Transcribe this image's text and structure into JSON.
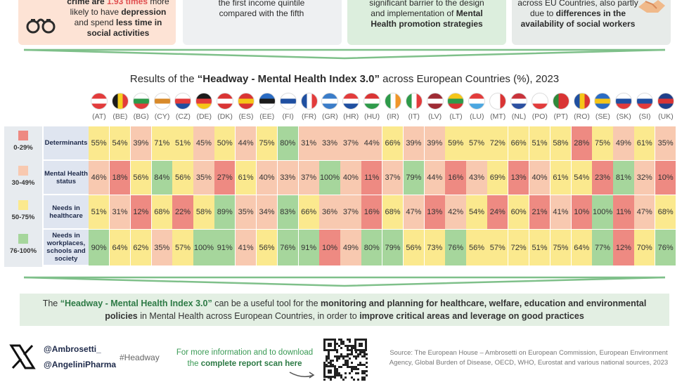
{
  "top_cards": {
    "card1": {
      "pre": "crime are ",
      "highlight": "1.93 times",
      "post1": " more likely to have ",
      "depression": "depression",
      "post2": " and spend ",
      "less_time": "less time",
      "post3": " in social activities",
      "icon": "handcuffs-icon"
    },
    "card2": {
      "line1": "the first income quintile",
      "line2": "compared with the fifth"
    },
    "card3": {
      "line1": "significant barrier to the design",
      "line2": "and implementation of ",
      "mental": "Mental",
      "line3": "Health promotion strategies"
    },
    "card4": {
      "line1": "across EU Countries, also partly",
      "line2": "due to ",
      "bold": "differences in the",
      "line3": "availability of social workers",
      "icon": "handshake-icon"
    }
  },
  "title": {
    "pre": "Results of the ",
    "bold": "“Headway - Mental Health Index 3.0”",
    "post": " across European Countries (%), 2023"
  },
  "countries": [
    {
      "code": "(AT)",
      "colors": [
        "#e23b3b",
        "#ffffff",
        "#e23b3b"
      ],
      "dir": "h"
    },
    {
      "code": "(BE)",
      "colors": [
        "#1b1b1b",
        "#f5d020",
        "#e23b3b"
      ],
      "dir": "v"
    },
    {
      "code": "(BG)",
      "colors": [
        "#ffffff",
        "#2e9a4a",
        "#e23b3b"
      ],
      "dir": "h"
    },
    {
      "code": "(CY)",
      "colors": [
        "#ffffff",
        "#d88a2a",
        "#ffffff"
      ],
      "dir": "h"
    },
    {
      "code": "(CZ)",
      "colors": [
        "#ffffff",
        "#e23b3b",
        "#1f4fa0"
      ],
      "dir": "h"
    },
    {
      "code": "(DE)",
      "colors": [
        "#1b1b1b",
        "#e23b3b",
        "#f5c518"
      ],
      "dir": "h"
    },
    {
      "code": "(DK)",
      "colors": [
        "#d93434",
        "#ffffff",
        "#d93434"
      ],
      "dir": "h"
    },
    {
      "code": "(ES)",
      "colors": [
        "#d93434",
        "#f5c518",
        "#d93434"
      ],
      "dir": "h"
    },
    {
      "code": "(EE)",
      "colors": [
        "#2a6cc4",
        "#1b1b1b",
        "#ffffff"
      ],
      "dir": "h"
    },
    {
      "code": "(FI)",
      "colors": [
        "#ffffff",
        "#1f4fa0",
        "#ffffff"
      ],
      "dir": "h"
    },
    {
      "code": "(FR)",
      "colors": [
        "#1f4fa0",
        "#ffffff",
        "#e23b3b"
      ],
      "dir": "v"
    },
    {
      "code": "(GR)",
      "colors": [
        "#3a7cc8",
        "#ffffff",
        "#3a7cc8"
      ],
      "dir": "h"
    },
    {
      "code": "(HR)",
      "colors": [
        "#e23b3b",
        "#ffffff",
        "#1f4fa0"
      ],
      "dir": "h"
    },
    {
      "code": "(HU)",
      "colors": [
        "#d93434",
        "#ffffff",
        "#2e9a4a"
      ],
      "dir": "h"
    },
    {
      "code": "(IR)",
      "colors": [
        "#2e9a4a",
        "#ffffff",
        "#f0962a"
      ],
      "dir": "v"
    },
    {
      "code": "(IT)",
      "colors": [
        "#2e9a4a",
        "#ffffff",
        "#e23b3b"
      ],
      "dir": "v"
    },
    {
      "code": "(LV)",
      "colors": [
        "#9e2b34",
        "#ffffff",
        "#9e2b34"
      ],
      "dir": "h"
    },
    {
      "code": "(LT)",
      "colors": [
        "#f5c518",
        "#2e9a4a",
        "#d93434"
      ],
      "dir": "h"
    },
    {
      "code": "(LU)",
      "colors": [
        "#e23b3b",
        "#ffffff",
        "#4aa6e0"
      ],
      "dir": "h"
    },
    {
      "code": "(MT)",
      "colors": [
        "#ffffff",
        "#ffffff",
        "#d93434"
      ],
      "dir": "v"
    },
    {
      "code": "(NL)",
      "colors": [
        "#c8323a",
        "#ffffff",
        "#2a4fa0"
      ],
      "dir": "h"
    },
    {
      "code": "(PO)",
      "colors": [
        "#ffffff",
        "#ffffff",
        "#e23b3b"
      ],
      "dir": "h"
    },
    {
      "code": "(PT)",
      "colors": [
        "#2e8a3a",
        "#d93434",
        "#d93434"
      ],
      "dir": "v"
    },
    {
      "code": "(RO)",
      "colors": [
        "#1f4fa0",
        "#f5c518",
        "#d93434"
      ],
      "dir": "v"
    },
    {
      "code": "(SE)",
      "colors": [
        "#2a6cc4",
        "#f5c518",
        "#2a6cc4"
      ],
      "dir": "h"
    },
    {
      "code": "(SK)",
      "colors": [
        "#ffffff",
        "#1f4fa0",
        "#e23b3b"
      ],
      "dir": "h"
    },
    {
      "code": "(SI)",
      "colors": [
        "#ffffff",
        "#1f4fa0",
        "#e23b3b"
      ],
      "dir": "h"
    },
    {
      "code": "(UK)",
      "colors": [
        "#1f3f8a",
        "#d93434",
        "#1f3f8a"
      ],
      "dir": "h"
    }
  ],
  "legend": [
    {
      "label": "0-29%",
      "color": "#ee8a82"
    },
    {
      "label": "30-49%",
      "color": "#f8c9b0"
    },
    {
      "label": "50-75%",
      "color": "#fbe98e"
    },
    {
      "label": "76-100%",
      "color": "#a6d69c"
    }
  ],
  "rows": [
    {
      "label": "Determinants",
      "values": [
        55,
        54,
        39,
        71,
        51,
        45,
        50,
        44,
        75,
        80,
        31,
        33,
        37,
        44,
        66,
        39,
        39,
        59,
        57,
        72,
        66,
        51,
        58,
        28,
        75,
        49,
        61,
        35
      ]
    },
    {
      "label": "Mental Health status",
      "values": [
        46,
        18,
        56,
        84,
        56,
        35,
        27,
        61,
        40,
        33,
        37,
        100,
        40,
        11,
        37,
        79,
        44,
        16,
        43,
        69,
        13,
        40,
        61,
        54,
        23,
        81,
        32,
        10
      ]
    },
    {
      "label": "Needs in healthcare",
      "values": [
        51,
        31,
        12,
        68,
        22,
        58,
        89,
        35,
        34,
        83,
        66,
        36,
        37,
        16,
        68,
        47,
        13,
        42,
        54,
        24,
        60,
        21,
        41,
        10,
        100,
        11,
        47,
        68
      ]
    },
    {
      "label": "Needs in workplaces, schools and society",
      "values": [
        90,
        64,
        62,
        35,
        57,
        100,
        91,
        41,
        56,
        76,
        91,
        10,
        49,
        80,
        79,
        56,
        73,
        76,
        56,
        57,
        72,
        51,
        75,
        64,
        77,
        12,
        70,
        76
      ]
    }
  ],
  "bottom_box": {
    "pre": "The ",
    "bold1": "“Headway - Mental Health Index 3.0”",
    "mid1": " can be a useful tool for the ",
    "bold2": "monitoring and planning for healthcare, welfare, education and environmental",
    "bold3": "policies",
    "mid2": " in Mental Health across European Countries, in order to ",
    "bold4": "improve critical areas and leverage on good practices"
  },
  "footer": {
    "handle1": "@Ambrosetti_",
    "handle2": "@AngeliniPharma",
    "hashtag": "#Headway",
    "more_info_1": "For more information and to download",
    "more_info_2_pre": "the ",
    "more_info_2_bold": "complete report scan here",
    "source_1": "Source: The European House – Ambrosetti on European Commission, European Environment",
    "source_2": "Agency, Global Burden of Disease, OECD, WHO, Eurostat and various national sources, 2023"
  }
}
